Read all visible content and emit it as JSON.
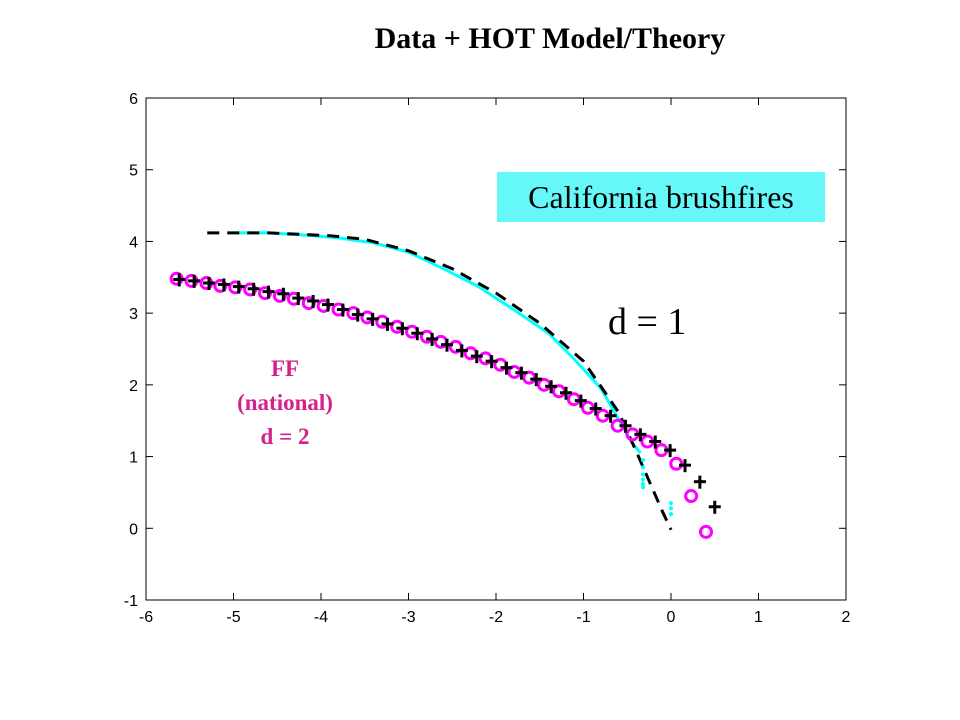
{
  "chart_data": {
    "type": "scatter",
    "title": "Data + HOT Model/Theory",
    "xlim": [
      -6,
      2
    ],
    "ylim": [
      -1,
      6
    ],
    "xticks": [
      "-6",
      "-5",
      "-4",
      "-3",
      "-2",
      "-1",
      "0",
      "1",
      "2"
    ],
    "yticks": [
      "-1",
      "0",
      "1",
      "2",
      "3",
      "4",
      "5",
      "6"
    ],
    "grid": false,
    "annotations": {
      "callout": "California brushfires",
      "d1": "d = 1",
      "ff_line1": "FF",
      "ff_line2": "(national)",
      "ff_line3": "d = 2"
    },
    "series": [
      {
        "style": "magenta-circles",
        "color": "#ff00ff",
        "x": [
          -5.65,
          -5.48,
          -5.31,
          -5.15,
          -4.98,
          -4.81,
          -4.64,
          -4.47,
          -4.31,
          -4.14,
          -3.97,
          -3.8,
          -3.63,
          -3.47,
          -3.3,
          -3.13,
          -2.96,
          -2.79,
          -2.63,
          -2.46,
          -2.29,
          -2.12,
          -1.95,
          -1.79,
          -1.62,
          -1.45,
          -1.28,
          -1.11,
          -0.95,
          -0.78,
          -0.61,
          -0.44,
          -0.27,
          -0.11,
          0.06,
          0.23,
          0.4
        ],
        "y": [
          3.48,
          3.45,
          3.42,
          3.38,
          3.36,
          3.33,
          3.28,
          3.24,
          3.2,
          3.14,
          3.1,
          3.05,
          3.0,
          2.94,
          2.88,
          2.81,
          2.74,
          2.67,
          2.6,
          2.53,
          2.44,
          2.37,
          2.28,
          2.18,
          2.1,
          2.0,
          1.91,
          1.8,
          1.68,
          1.57,
          1.43,
          1.31,
          1.21,
          1.09,
          0.9,
          0.45,
          -0.05
        ]
      },
      {
        "style": "black-plus",
        "color": "#000000",
        "x": [
          -5.62,
          -5.45,
          -5.28,
          -5.11,
          -4.94,
          -4.77,
          -4.6,
          -4.43,
          -4.26,
          -4.09,
          -3.92,
          -3.75,
          -3.58,
          -3.41,
          -3.24,
          -3.07,
          -2.9,
          -2.73,
          -2.56,
          -2.39,
          -2.22,
          -2.05,
          -1.88,
          -1.71,
          -1.54,
          -1.37,
          -1.2,
          -1.03,
          -0.86,
          -0.69,
          -0.52,
          -0.35,
          -0.18,
          -0.01,
          0.16,
          0.33,
          0.5
        ],
        "y": [
          3.47,
          3.45,
          3.42,
          3.4,
          3.37,
          3.34,
          3.3,
          3.27,
          3.21,
          3.17,
          3.12,
          3.05,
          2.98,
          2.92,
          2.85,
          2.79,
          2.72,
          2.64,
          2.56,
          2.48,
          2.4,
          2.33,
          2.24,
          2.17,
          2.08,
          1.98,
          1.89,
          1.78,
          1.67,
          1.57,
          1.43,
          1.31,
          1.21,
          1.09,
          0.88,
          0.65,
          0.3
        ]
      },
      {
        "style": "cyan-solid",
        "color": "#00ffff",
        "x": [
          -5.0,
          -4.6,
          -4.2,
          -3.8,
          -3.4,
          -3.0,
          -2.6,
          -2.2,
          -1.8,
          -1.4,
          -1.1,
          -0.8,
          -0.6,
          -0.45,
          -0.35
        ],
        "y": [
          4.12,
          4.12,
          4.09,
          4.05,
          3.98,
          3.85,
          3.62,
          3.37,
          3.05,
          2.72,
          2.35,
          1.95,
          1.52,
          1.2,
          1.05
        ]
      },
      {
        "style": "cyan-dots",
        "color": "#00ffff",
        "x": [
          -0.32,
          -0.32,
          -0.32,
          -0.32,
          -0.32,
          -0.32,
          0.0,
          0.0,
          0.0
        ],
        "y": [
          0.95,
          0.85,
          0.75,
          0.68,
          0.62,
          0.57,
          0.35,
          0.28,
          0.2
        ]
      },
      {
        "style": "black-dashed",
        "color": "#000000",
        "x": [
          -5.3,
          -4.6,
          -3.9,
          -3.5,
          -3.0,
          -2.5,
          -2.0,
          -1.5,
          -1.0,
          -0.6,
          -0.4,
          -0.25,
          -0.1,
          0.0
        ],
        "y": [
          4.12,
          4.12,
          4.08,
          4.03,
          3.87,
          3.62,
          3.28,
          2.86,
          2.33,
          1.62,
          1.08,
          0.66,
          0.24,
          -0.02
        ]
      }
    ]
  }
}
